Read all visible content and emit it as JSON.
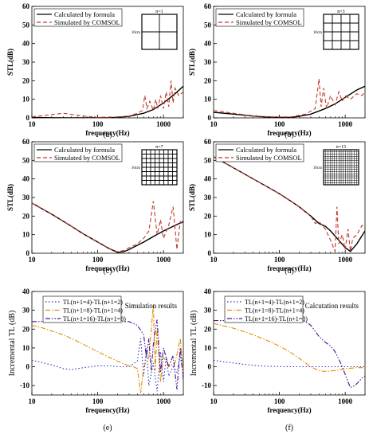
{
  "chart_data": [
    {
      "type": "line",
      "panel_label": "(a)",
      "xlabel": "frequency(Hz)",
      "ylabel": "STL(dB)",
      "xscale": "log",
      "xlim": [
        10,
        2000
      ],
      "ylim": [
        0,
        60
      ],
      "xticks": [
        10,
        100,
        1000
      ],
      "yticks": [
        0,
        10,
        20,
        30,
        40,
        50,
        60
      ],
      "legend": [
        "Calculated by formula",
        "Simulated by COMSOL"
      ],
      "legend_position": "top-left",
      "inset": {
        "n_label": "n=1",
        "side_label": "10cm",
        "divisions": 2
      },
      "series": [
        {
          "name": "Calculated by formula",
          "color": "#000000",
          "dash": "solid",
          "x": [
            10,
            20,
            40,
            60,
            100,
            150,
            200,
            300,
            500,
            700,
            1000,
            1500,
            2000
          ],
          "y": [
            0.2,
            0.1,
            0.0,
            0.0,
            0.0,
            0.1,
            0.3,
            0.8,
            2.5,
            4.5,
            8.0,
            13.0,
            17.0
          ]
        },
        {
          "name": "Simulated by COMSOL",
          "color": "#c0392b",
          "dash": "dash",
          "x": [
            10,
            30,
            60,
            100,
            200,
            300,
            400,
            480,
            520,
            560,
            620,
            700,
            760,
            820,
            900,
            1000,
            1100,
            1200,
            1300,
            1400,
            1500,
            1700,
            2000
          ],
          "y": [
            0.5,
            2.5,
            1.0,
            0.3,
            0.5,
            1.0,
            2.5,
            4.0,
            12.0,
            5.0,
            9.0,
            4.0,
            10.0,
            5.0,
            12.0,
            5.0,
            14.0,
            6.0,
            20.0,
            8.0,
            16.0,
            12.0,
            14.0
          ]
        }
      ]
    },
    {
      "type": "line",
      "panel_label": "(b)",
      "xlabel": "frequency(Hz)",
      "ylabel": "STL(dB)",
      "xscale": "log",
      "xlim": [
        10,
        2000
      ],
      "ylim": [
        0,
        60
      ],
      "xticks": [
        10,
        100,
        1000
      ],
      "yticks": [
        0,
        10,
        20,
        30,
        40,
        50,
        60
      ],
      "legend": [
        "Calculated by formula",
        "Simulated by COMSOL"
      ],
      "legend_position": "top-left",
      "inset": {
        "n_label": "n=3",
        "side_label": "10cm",
        "divisions": 4
      },
      "series": [
        {
          "name": "Calculated by formula",
          "color": "#000000",
          "dash": "solid",
          "x": [
            10,
            20,
            40,
            60,
            100,
            150,
            200,
            300,
            500,
            700,
            1000,
            1500,
            2000
          ],
          "y": [
            3.0,
            2.0,
            1.0,
            0.5,
            0.2,
            0.3,
            0.8,
            2.0,
            5.0,
            7.5,
            11.0,
            15.0,
            17.0
          ]
        },
        {
          "name": "Simulated by COMSOL",
          "color": "#c0392b",
          "dash": "dash",
          "x": [
            10,
            20,
            40,
            80,
            150,
            250,
            350,
            400,
            430,
            470,
            520,
            600,
            700,
            800,
            900,
            1000,
            1200,
            1500,
            1800,
            2000
          ],
          "y": [
            4.0,
            2.5,
            1.0,
            0.5,
            0.5,
            2.0,
            5.0,
            21.0,
            6.0,
            16.0,
            5.0,
            12.0,
            7.0,
            14.0,
            9.0,
            12.0,
            10.0,
            13.0,
            12.0,
            14.0
          ]
        }
      ]
    },
    {
      "type": "line",
      "panel_label": "(c)",
      "xlabel": "frequency(Hz)",
      "ylabel": "STL(dB)",
      "xscale": "log",
      "xlim": [
        10,
        2000
      ],
      "ylim": [
        0,
        60
      ],
      "xticks": [
        10,
        100,
        1000
      ],
      "yticks": [
        0,
        10,
        20,
        30,
        40,
        50,
        60
      ],
      "legend": [
        "Calculated by formula",
        "Simulated by COMSOL"
      ],
      "legend_position": "top-left",
      "inset": {
        "n_label": "n=7",
        "side_label": "10cm",
        "divisions": 8
      },
      "series": [
        {
          "name": "Calculated by formula",
          "color": "#000000",
          "dash": "solid",
          "x": [
            10,
            20,
            40,
            60,
            100,
            150,
            200,
            250,
            300,
            500,
            700,
            1000,
            1500,
            2000
          ],
          "y": [
            27.0,
            21.0,
            14.5,
            10.5,
            6.0,
            2.5,
            0.5,
            0.8,
            2.0,
            6.0,
            9.0,
            12.0,
            15.0,
            17.0
          ]
        },
        {
          "name": "Simulated by COMSOL",
          "color": "#c0392b",
          "dash": "dash",
          "x": [
            10,
            20,
            40,
            60,
            100,
            150,
            200,
            250,
            300,
            400,
            500,
            600,
            700,
            800,
            900,
            1000,
            1200,
            1400,
            1600,
            1800,
            2000
          ],
          "y": [
            27.0,
            21.0,
            14.5,
            10.5,
            6.0,
            2.5,
            0.8,
            1.5,
            3.0,
            5.0,
            8.0,
            12.0,
            28.0,
            10.0,
            18.0,
            8.0,
            15.0,
            25.0,
            2.0,
            17.0,
            15.0
          ]
        }
      ]
    },
    {
      "type": "line",
      "panel_label": "(d)",
      "xlabel": "frequency(Hz)",
      "ylabel": "STL(dB)",
      "xscale": "log",
      "xlim": [
        10,
        2000
      ],
      "ylim": [
        0,
        60
      ],
      "xticks": [
        10,
        100,
        1000
      ],
      "yticks": [
        0,
        10,
        20,
        30,
        40,
        50,
        60
      ],
      "legend": [
        "Calculated by formula",
        "Simulated by COMSOL"
      ],
      "legend_position": "top-left",
      "inset": {
        "n_label": "n=15",
        "side_label": "10cm",
        "divisions": 16
      },
      "series": [
        {
          "name": "Calculated by formula",
          "color": "#000000",
          "dash": "solid",
          "x": [
            10,
            20,
            40,
            60,
            100,
            150,
            200,
            300,
            400,
            500,
            600,
            800,
            1000,
            1200,
            1500,
            2000
          ],
          "y": [
            52.0,
            46.0,
            40.0,
            36.5,
            32.0,
            28.0,
            25.0,
            20.0,
            16.0,
            14.5,
            12.0,
            7.0,
            3.0,
            1.0,
            5.0,
            12.0
          ]
        },
        {
          "name": "Simulated by COMSOL",
          "color": "#c0392b",
          "dash": "dash",
          "x": [
            10,
            20,
            40,
            60,
            100,
            150,
            200,
            300,
            350,
            400,
            450,
            500,
            600,
            700,
            750,
            800,
            900,
            1000,
            1100,
            1200,
            1300,
            1500,
            1800,
            2000
          ],
          "y": [
            52.0,
            46.0,
            40.0,
            36.5,
            32.0,
            28.0,
            25.0,
            20.0,
            16.0,
            17.0,
            15.0,
            13.0,
            7.0,
            1.0,
            25.0,
            5.0,
            10.0,
            2.0,
            13.0,
            1.0,
            8.0,
            10.0,
            15.0,
            13.0
          ]
        }
      ]
    },
    {
      "type": "line",
      "panel_label": "(e)",
      "xlabel": "frequency(Hz)",
      "ylabel": "Incremental TL (dB)",
      "xscale": "log",
      "xlim": [
        10,
        2000
      ],
      "ylim": [
        -15,
        40
      ],
      "xticks": [
        10,
        100,
        1000
      ],
      "yticks": [
        -10,
        0,
        10,
        20,
        30,
        40
      ],
      "annotation": "Simulation results",
      "legend": [
        "TL(n+1=4)-TL(n+1=2)",
        "TL(n+1=8)-TL(n+1=4)",
        "TL(n+1=16)-TL(n+1=8)"
      ],
      "legend_position": "top-left",
      "series": [
        {
          "name": "TL(n+1=4)-TL(n+1=2)",
          "color": "#2b35c9",
          "dash": "dot",
          "x": [
            10,
            15,
            20,
            30,
            40,
            60,
            100,
            150,
            200,
            300,
            400,
            450,
            500,
            550,
            600,
            700,
            800,
            900,
            1000,
            1100,
            1200,
            1400,
            1600,
            1800,
            2000
          ],
          "y": [
            3.5,
            2.0,
            1.0,
            -1.0,
            -1.5,
            -0.5,
            0.5,
            0.5,
            0.0,
            0.0,
            3.0,
            15.0,
            -5.0,
            10.0,
            -10.0,
            2.0,
            -13.0,
            8.0,
            -8.0,
            5.0,
            -5.0,
            0.0,
            -3.0,
            6.0,
            -5.0
          ]
        },
        {
          "name": "TL(n+1=8)-TL(n+1=4)",
          "color": "#e08e00",
          "dash": "dashdot",
          "x": [
            10,
            15,
            20,
            30,
            40,
            60,
            100,
            150,
            200,
            250,
            300,
            350,
            400,
            450,
            500,
            600,
            700,
            750,
            800,
            900,
            1000,
            1200,
            1500,
            1800,
            2000
          ],
          "y": [
            22.0,
            20.5,
            19.0,
            17.0,
            15.0,
            12.0,
            8.0,
            5.0,
            3.0,
            1.5,
            0.5,
            0.0,
            -1.0,
            -14.0,
            0.0,
            5.0,
            33.0,
            -2.0,
            20.0,
            -8.0,
            5.0,
            0.0,
            2.0,
            15.0,
            -3.0
          ]
        },
        {
          "name": "TL(n+1=16)-TL(n+1=8)",
          "color": "#4a148c",
          "dash": "dashdotdot",
          "x": [
            10,
            20,
            40,
            60,
            100,
            150,
            200,
            300,
            400,
            500,
            550,
            600,
            650,
            700,
            800,
            900,
            1000,
            1200,
            1400,
            1600,
            1800,
            2000
          ],
          "y": [
            24.0,
            24.0,
            24.0,
            24.0,
            24.0,
            24.0,
            24.0,
            24.0,
            22.0,
            17.0,
            5.0,
            15.0,
            -2.0,
            12.0,
            25.0,
            -3.0,
            10.0,
            0.0,
            6.0,
            -12.0,
            10.0,
            -7.0
          ]
        }
      ]
    },
    {
      "type": "line",
      "panel_label": "(f)",
      "xlabel": "frequency(Hz)",
      "ylabel": "Incremental TL (dB)",
      "xscale": "log",
      "xlim": [
        10,
        2000
      ],
      "ylim": [
        -15,
        40
      ],
      "xticks": [
        10,
        100,
        1000
      ],
      "yticks": [
        -10,
        0,
        10,
        20,
        30,
        40
      ],
      "annotation": "Calcutation results",
      "legend": [
        "TL(n+1=4)-TL(n+1=2)",
        "TL(n+1=8)-TL(n+1=4)",
        "TL(n+1=16)-TL(n+1=8)"
      ],
      "legend_position": "top-left",
      "series": [
        {
          "name": "TL(n+1=4)-TL(n+1=2)",
          "color": "#2b35c9",
          "dash": "dot",
          "x": [
            10,
            15,
            20,
            30,
            50,
            80,
            100,
            150,
            200,
            300,
            500,
            1000,
            2000
          ],
          "y": [
            3.5,
            2.5,
            2.0,
            1.2,
            0.5,
            0.2,
            0.1,
            0.0,
            0.0,
            0.0,
            0.0,
            0.0,
            0.0
          ]
        },
        {
          "name": "TL(n+1=8)-TL(n+1=4)",
          "color": "#e08e00",
          "dash": "dashdot",
          "x": [
            10,
            15,
            20,
            30,
            40,
            60,
            100,
            150,
            200,
            250,
            300,
            400,
            500,
            700,
            1000,
            1500,
            2000
          ],
          "y": [
            23.0,
            21.5,
            20.5,
            18.5,
            17.0,
            14.5,
            11.0,
            7.5,
            4.5,
            2.0,
            0.0,
            -2.0,
            -2.5,
            -2.0,
            -1.0,
            -0.5,
            -0.5
          ]
        },
        {
          "name": "TL(n+1=16)-TL(n+1=8)",
          "color": "#4a148c",
          "dash": "dashdotdot",
          "x": [
            10,
            20,
            40,
            60,
            100,
            150,
            200,
            250,
            300,
            400,
            500,
            600,
            700,
            800,
            900,
            1000,
            1100,
            1200,
            1400,
            1600,
            1800,
            2000
          ],
          "y": [
            24.5,
            24.5,
            24.5,
            24.5,
            24.5,
            24.5,
            24.5,
            24.0,
            22.0,
            16.0,
            13.0,
            11.0,
            8.0,
            4.0,
            0.0,
            -4.0,
            -8.0,
            -11.0,
            -10.0,
            -8.0,
            -6.0,
            -5.0
          ]
        }
      ]
    }
  ]
}
